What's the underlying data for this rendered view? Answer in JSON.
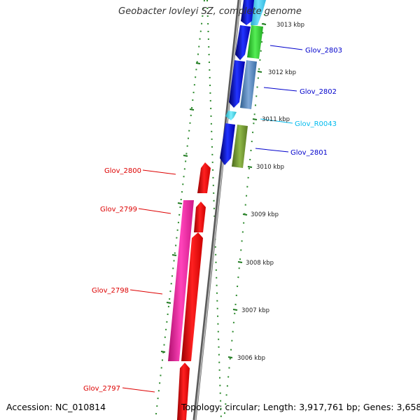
{
  "title": "Geobacter lovleyi SZ, complete genome",
  "footer": {
    "accession": "Accession: NC_010814",
    "topology": "Topology: circular; Length: 3,917,761 bp; Genes: 3,658"
  },
  "colors": {
    "backbone": "#8c8c8c",
    "tick": "#2e8b2e",
    "label_forward": "#0000cc",
    "label_rna": "#00bbee",
    "label_reverse": "#dd0000"
  },
  "scale_labels": [
    "3013 kbp",
    "3012 kbp",
    "3011 kbp",
    "3010 kbp",
    "3009 kbp",
    "3008 kbp",
    "3007 kbp",
    "3006 kbp"
  ],
  "genes": [
    {
      "label": "Glov_2803",
      "color": "#0000cc",
      "strand": "forward"
    },
    {
      "label": "Glov_2802",
      "color": "#0000cc",
      "strand": "forward"
    },
    {
      "label": "Glov_R0043",
      "color": "#00bbee",
      "strand": "forward"
    },
    {
      "label": "Glov_2801",
      "color": "#0000cc",
      "strand": "forward"
    },
    {
      "label": "Glov_2800",
      "color": "#dd0000",
      "strand": "reverse"
    },
    {
      "label": "Glov_2799",
      "color": "#dd0000",
      "strand": "reverse"
    },
    {
      "label": "Glov_2798",
      "color": "#dd0000",
      "strand": "reverse"
    },
    {
      "label": "Glov_2797",
      "color": "#dd0000",
      "strand": "reverse"
    }
  ]
}
